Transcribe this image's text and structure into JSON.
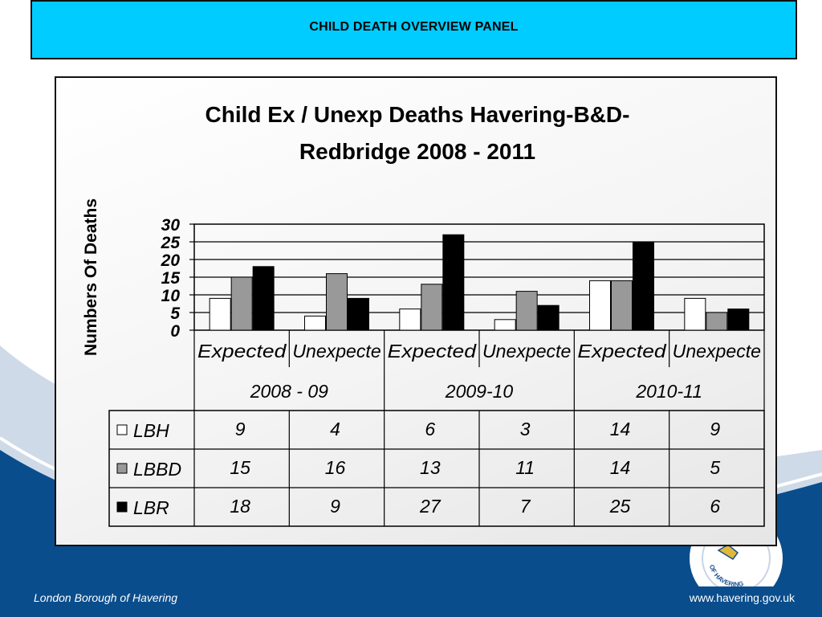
{
  "header": {
    "title": "CHILD DEATH OVERVIEW PANEL"
  },
  "footer": {
    "left_text": "London Borough of Havering",
    "right_text": "www.havering.gov.uk"
  },
  "logo": {
    "text": "OF HAVERING"
  },
  "colors": {
    "banner": "#00ccff",
    "navy": "#0a3f73",
    "lbh": "#ffffff",
    "lbbd": "#999999",
    "lbr": "#000000"
  },
  "chart_data": {
    "type": "bar",
    "title_line1": "Child Ex / Unexp Deaths Havering-B&D-",
    "title_line2": "Redbridge 2008 - 2011",
    "ylabel": "Numbers Of Deaths",
    "ylim": [
      0,
      30
    ],
    "yticks": [
      "0",
      "5",
      "10",
      "15",
      "20",
      "25",
      "30"
    ],
    "grid": true,
    "categories": [
      "Expected",
      "Unexpecte",
      "Expected",
      "Unexpecte",
      "Expected",
      "Unexpecte"
    ],
    "groups": [
      "2008 - 09",
      "2009-10",
      "2010-11"
    ],
    "series": [
      {
        "name": "LBH",
        "color": "#ffffff",
        "values": [
          9,
          4,
          6,
          3,
          14,
          9
        ],
        "labels": [
          "9",
          "4",
          "6",
          "3",
          "14",
          "9"
        ]
      },
      {
        "name": "LBBD",
        "color": "#999999",
        "values": [
          15,
          16,
          13,
          11,
          14,
          5
        ],
        "labels": [
          "15",
          "16",
          "13",
          "11",
          "14",
          "5"
        ]
      },
      {
        "name": "LBR",
        "color": "#000000",
        "values": [
          18,
          9,
          27,
          7,
          25,
          6
        ],
        "labels": [
          "18",
          "9",
          "27",
          "7",
          "25",
          "6"
        ]
      }
    ]
  }
}
